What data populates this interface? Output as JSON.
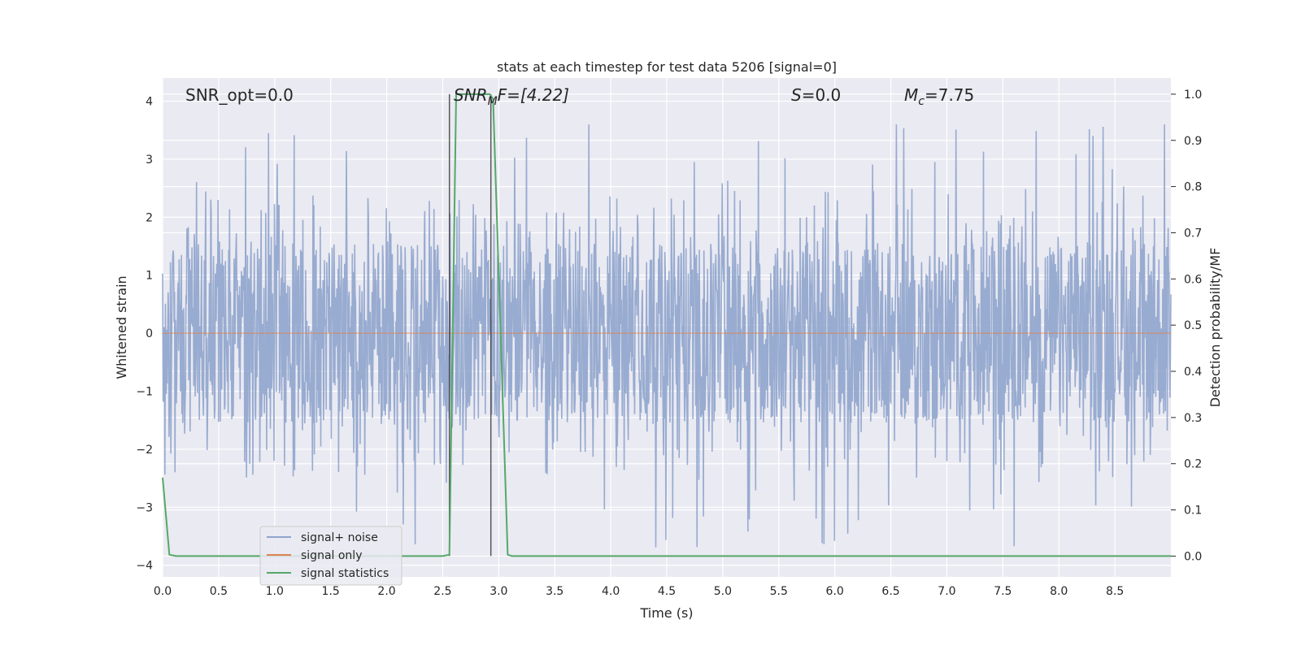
{
  "chart_data": {
    "type": "line",
    "title": "stats at each timestep for test data 5206 [signal=0]",
    "xlabel": "Time (s)",
    "ylabel_left": "Whitened strain",
    "ylabel_right": "Detection probability/MF",
    "xlim": [
      0.0,
      9.0
    ],
    "ylim_left": [
      -4.2,
      4.4
    ],
    "ylim_right": [
      -0.045,
      1.035
    ],
    "x_ticks": [
      "0.0",
      "0.5",
      "1.0",
      "1.5",
      "2.0",
      "2.5",
      "3.0",
      "3.5",
      "4.0",
      "4.5",
      "5.0",
      "5.5",
      "6.0",
      "6.5",
      "7.0",
      "7.5",
      "8.0",
      "8.5"
    ],
    "y_left_ticks": [
      "4",
      "3",
      "2",
      "1",
      "0",
      "−1",
      "−2",
      "−3",
      "−4"
    ],
    "y_right_ticks": [
      "1.0",
      "0.9",
      "0.8",
      "0.7",
      "0.6",
      "0.5",
      "0.4",
      "0.3",
      "0.2",
      "0.1",
      "0.0"
    ],
    "grid": true,
    "legend_position": "lower-left",
    "annotations": {
      "snr_opt": "SNR_opt=0.0",
      "snr_mf_main": "SNR",
      "snr_mf_sub": "M",
      "snr_mf_rest": "F=[4.22]",
      "s_main": "S",
      "s_rest": "=0.0",
      "mc_main": "M",
      "mc_sub": "c",
      "mc_rest": "=7.75"
    },
    "vertical_lines": [
      2.56,
      2.93
    ],
    "series": [
      {
        "name": "signal+ noise",
        "color": "#8fa4cc",
        "kind": "noise",
        "typical_range": [
          -1.5,
          1.6
        ],
        "peak_range": [
          -3.8,
          3.6
        ]
      },
      {
        "name": "signal only",
        "color": "#dd8452",
        "x": [
          0.0,
          9.0
        ],
        "y": [
          0.0,
          0.0
        ]
      },
      {
        "name": "signal statistics",
        "color": "#55a868",
        "axis": "right",
        "x": [
          0.0,
          0.06,
          0.12,
          2.5,
          2.56,
          2.62,
          2.92,
          2.95,
          3.08,
          3.12,
          9.0
        ],
        "y": [
          0.17,
          0.003,
          0.0,
          0.0,
          0.003,
          1.0,
          1.0,
          0.99,
          0.003,
          0.0,
          0.0
        ]
      }
    ]
  }
}
